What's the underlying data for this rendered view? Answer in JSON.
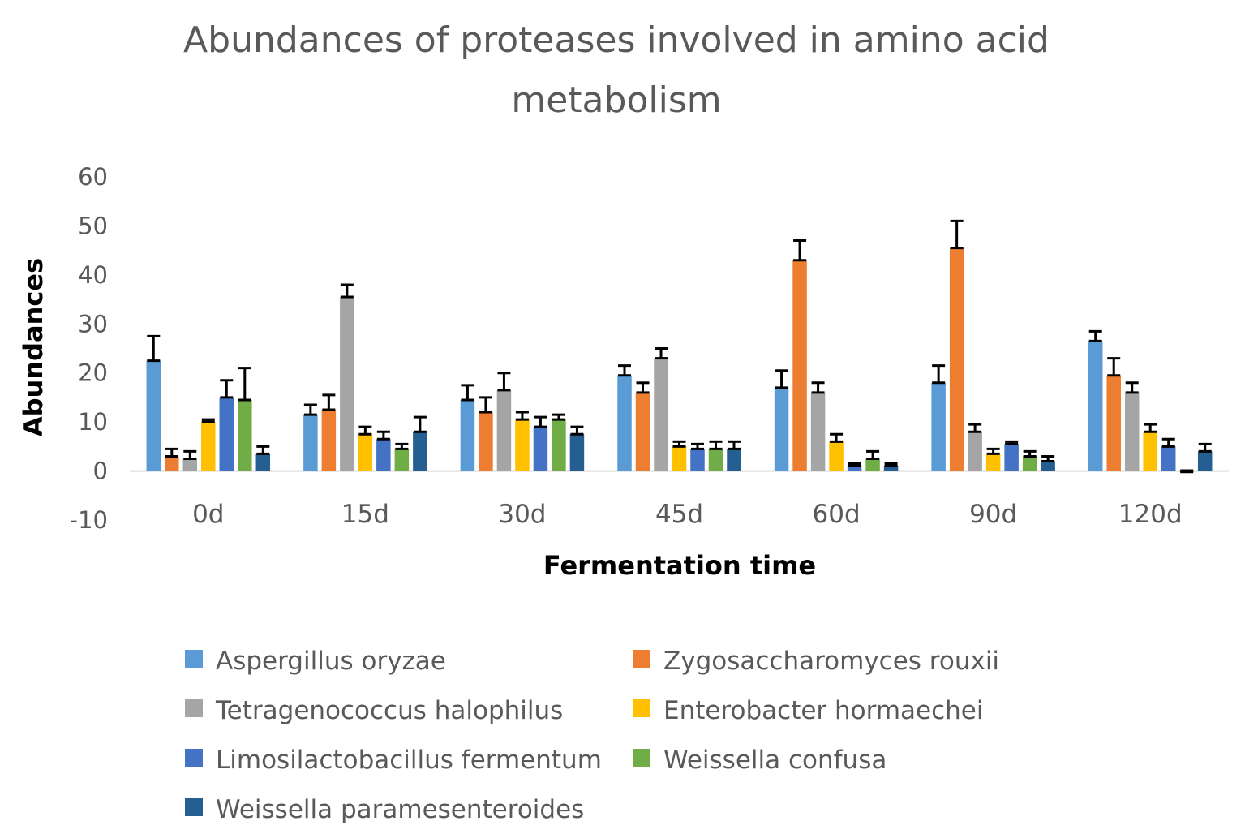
{
  "chart_data": {
    "type": "bar",
    "title": "Abundances of proteases involved in amino acid metabolism",
    "title_lines": [
      "Abundances of proteases involved in amino acid",
      "metabolism"
    ],
    "xlabel": "Fermentation time",
    "ylabel": "Abundances",
    "ylim": [
      -10,
      60
    ],
    "yticks": [
      60,
      50,
      40,
      30,
      20,
      10,
      0,
      -10
    ],
    "categories": [
      "0d",
      "15d",
      "30d",
      "45d",
      "60d",
      "90d",
      "120d"
    ],
    "error_bars": true,
    "legend_position": "bottom",
    "series": [
      {
        "name": "Aspergillus oryzae",
        "color": "#5B9BD5",
        "values": [
          22.5,
          11.5,
          14.5,
          19.5,
          17.0,
          18.0,
          26.5
        ],
        "errors": [
          5.0,
          2.0,
          3.0,
          2.0,
          3.5,
          3.5,
          2.0
        ]
      },
      {
        "name": "Zygosaccharomyces rouxii",
        "color": "#ED7D31",
        "values": [
          3.0,
          12.5,
          12.0,
          16.0,
          43.0,
          45.5,
          19.5
        ],
        "errors": [
          1.5,
          3.0,
          3.0,
          2.0,
          4.0,
          5.5,
          3.5
        ]
      },
      {
        "name": "Tetragenococcus halophilus",
        "color": "#A5A5A5",
        "values": [
          2.5,
          35.5,
          16.5,
          23.0,
          16.0,
          8.0,
          16.0
        ],
        "errors": [
          1.5,
          2.5,
          3.5,
          2.0,
          2.0,
          1.5,
          2.0
        ]
      },
      {
        "name": "Enterobacter hormaechei",
        "color": "#FFC000",
        "values": [
          10.0,
          7.5,
          10.5,
          5.0,
          6.0,
          3.5,
          8.0
        ],
        "errors": [
          0.5,
          1.5,
          1.5,
          1.0,
          1.5,
          1.0,
          1.5
        ]
      },
      {
        "name": "Limosilactobacillus fermentum",
        "color": "#4472C4",
        "values": [
          15.0,
          6.5,
          9.0,
          4.5,
          1.0,
          5.5,
          5.0
        ],
        "errors": [
          3.5,
          1.5,
          2.0,
          1.0,
          0.5,
          0.5,
          1.5
        ]
      },
      {
        "name": "Weissella confusa",
        "color": "#70AD47",
        "values": [
          14.5,
          4.5,
          10.5,
          4.5,
          2.5,
          3.0,
          -0.2
        ],
        "errors": [
          6.5,
          1.0,
          1.0,
          1.5,
          1.5,
          1.0,
          0.3
        ]
      },
      {
        "name": "Weissella paramesenteroides",
        "color": "#255E91",
        "values": [
          3.5,
          8.0,
          7.5,
          4.5,
          1.0,
          2.0,
          4.0
        ],
        "errors": [
          1.5,
          3.0,
          1.5,
          1.5,
          0.5,
          1.0,
          1.5
        ]
      }
    ]
  }
}
